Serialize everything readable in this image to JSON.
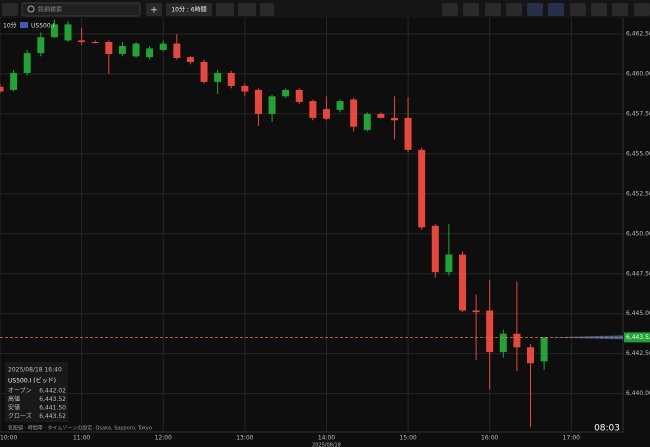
{
  "toolbar": {
    "search_placeholder": "銘柄検索",
    "add": "+",
    "interval": "10分 : 6時間"
  },
  "chart_data": {
    "type": "candlestick",
    "interval_label": "10分",
    "symbol": "US500.I",
    "x": [
      "10:00",
      "10:10",
      "10:20",
      "10:30",
      "10:40",
      "10:50",
      "11:00",
      "11:10",
      "11:20",
      "11:30",
      "11:40",
      "11:50",
      "12:00",
      "12:10",
      "12:20",
      "12:30",
      "12:40",
      "12:50",
      "13:00",
      "13:10",
      "13:20",
      "13:30",
      "13:40",
      "13:50",
      "14:00",
      "14:10",
      "14:20",
      "14:30",
      "14:40",
      "14:50",
      "15:00",
      "15:10",
      "15:20",
      "15:30",
      "15:40",
      "15:50",
      "16:00",
      "16:10",
      "16:20",
      "16:30",
      "16:40"
    ],
    "open": [
      6459.2,
      6459.0,
      6460.06,
      6461.3,
      6462.3,
      6462.1,
      6462.1,
      6462.0,
      6462.0,
      6461.25,
      6461.1,
      6461.05,
      6461.5,
      6461.9,
      6461.05,
      6460.75,
      6459.5,
      6460.06,
      6459.25,
      6459.0,
      6457.5,
      6458.6,
      6459.0,
      6458.3,
      6457.8,
      6457.75,
      6458.4,
      6456.5,
      6457.5,
      6457.25,
      6457.25,
      6455.25,
      6450.5,
      6447.6,
      6448.7,
      6445.2,
      6445.2,
      6442.6,
      6443.75,
      6442.9,
      6442.02
    ],
    "high": [
      6459.4,
      6460.25,
      6461.5,
      6462.6,
      6463.4,
      6463.3,
      6462.9,
      6462.1,
      6462.1,
      6462.0,
      6462.0,
      6461.75,
      6462.1,
      6462.5,
      6461.1,
      6460.9,
      6460.25,
      6460.2,
      6459.4,
      6459.1,
      6458.7,
      6459.1,
      6459.1,
      6458.4,
      6458.6,
      6458.4,
      6458.5,
      6457.6,
      6457.6,
      6458.6,
      6458.55,
      6455.4,
      6450.6,
      6450.6,
      6448.9,
      6446.2,
      6447.1,
      6444.0,
      6447.0,
      6443.1,
      6443.52
    ],
    "low": [
      6458.8,
      6458.9,
      6459.9,
      6461.1,
      6462.25,
      6462.0,
      6461.8,
      6461.9,
      6460.0,
      6461.1,
      6461.0,
      6460.9,
      6461.4,
      6460.9,
      6460.6,
      6459.4,
      6458.75,
      6459.1,
      6458.6,
      6456.75,
      6457.0,
      6458.5,
      6458.1,
      6457.1,
      6457.1,
      6457.6,
      6456.4,
      6456.4,
      6457.2,
      6455.9,
      6455.1,
      6450.25,
      6447.25,
      6447.4,
      6445.1,
      6442.1,
      6440.25,
      6442.25,
      6441.4,
      6437.9,
      6441.5
    ],
    "close": [
      6458.9,
      6460.06,
      6461.3,
      6462.3,
      6463.1,
      6463.1,
      6462.0,
      6461.95,
      6461.25,
      6461.75,
      6461.9,
      6461.6,
      6461.9,
      6461.0,
      6460.75,
      6459.5,
      6460.06,
      6459.25,
      6458.9,
      6457.5,
      6458.6,
      6459.0,
      6458.25,
      6457.25,
      6457.2,
      6458.3,
      6456.7,
      6457.5,
      6457.25,
      6457.1,
      6455.25,
      6450.4,
      6447.6,
      6448.7,
      6445.2,
      6445.1,
      6442.6,
      6443.75,
      6442.9,
      6441.9,
      6443.52
    ],
    "up_color": "#21a336",
    "down_color": "#e8473d",
    "ylim": [
      6437.6,
      6463.5
    ],
    "yticks": [
      {
        "value": 6440,
        "label": "6,440.00"
      },
      {
        "value": 6442.5,
        "label": "6,442.50"
      },
      {
        "value": 6445,
        "label": "6,445.00"
      },
      {
        "value": 6447.5,
        "label": "6,447.50"
      },
      {
        "value": 6450,
        "label": "6,450.00"
      },
      {
        "value": 6452.5,
        "label": "6,452.50"
      },
      {
        "value": 6455,
        "label": "6,455.00"
      },
      {
        "value": 6457.5,
        "label": "6,457.50"
      },
      {
        "value": 6460,
        "label": "6,460.00"
      },
      {
        "value": 6462.5,
        "label": "6,462.50"
      }
    ],
    "xlim": [
      "10:00",
      "17:38"
    ],
    "xticks": [
      "10:00",
      "11:00",
      "12:00",
      "13:00",
      "14:00",
      "15:00",
      "16:00",
      "17:00"
    ],
    "date_label": "2025/08/18",
    "last_price": {
      "value": 6443.52,
      "label": "6,443.52"
    },
    "grid": true
  },
  "info_panel": {
    "datetime": "2025/08/18 16:40",
    "symbol": "US500.I (ビッド)",
    "rows": [
      {
        "label": "オープン",
        "value": "6,442.02"
      },
      {
        "label": "高値",
        "value": "6,443.52"
      },
      {
        "label": "安値",
        "value": "6,441.50"
      },
      {
        "label": "クローズ",
        "value": "6,443.52"
      }
    ]
  },
  "footer": "気配値 · 時間帯 · タイムゾーンの設定: Osaka, Sapporo, Tokyo",
  "clock": "08:03"
}
